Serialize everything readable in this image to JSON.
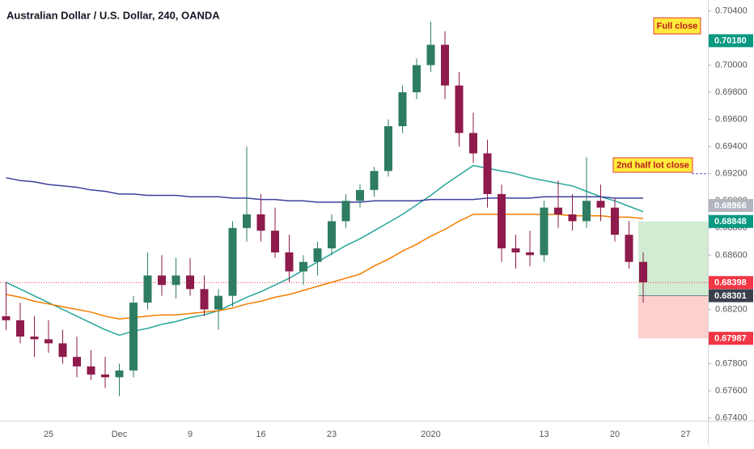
{
  "chart_data": {
    "type": "candlestick",
    "title": "Australian Dollar / U.S. Dollar, 240, OANDA",
    "categories": [
      null,
      null,
      null,
      "25",
      null,
      null,
      null,
      null,
      "Dec",
      null,
      null,
      null,
      null,
      "9",
      null,
      null,
      null,
      null,
      "16",
      null,
      null,
      null,
      null,
      "23",
      null,
      null,
      null,
      null,
      null,
      null,
      "2020",
      null,
      null,
      null,
      null,
      null,
      null,
      null,
      "13",
      null,
      null,
      null,
      null,
      "20",
      null,
      null,
      null,
      null,
      "27",
      null
    ],
    "open": [
      0.6815,
      0.6812,
      0.68,
      0.6798,
      0.6795,
      0.6785,
      0.6778,
      0.6772,
      0.677,
      0.6775,
      0.6825,
      0.6845,
      0.6838,
      0.6845,
      0.6835,
      0.682,
      0.683,
      0.688,
      0.689,
      0.6878,
      0.6862,
      0.6848,
      0.6855,
      0.6865,
      0.6885,
      0.69,
      0.6908,
      0.6922,
      0.6955,
      0.698,
      0.7,
      0.7015,
      0.6985,
      0.695,
      0.6935,
      0.6905,
      0.6865,
      0.6862,
      0.686,
      0.6895,
      0.689,
      0.6885,
      0.69,
      0.6895,
      0.6875,
      0.6855,
      null,
      null,
      null,
      null
    ],
    "high": [
      0.684,
      0.6825,
      0.6815,
      0.6812,
      0.6805,
      0.68,
      0.679,
      0.6785,
      0.678,
      0.683,
      0.6862,
      0.686,
      0.6858,
      0.6858,
      0.6845,
      0.6835,
      0.6885,
      0.694,
      0.6905,
      0.6895,
      0.6875,
      0.686,
      0.687,
      0.689,
      0.6905,
      0.6912,
      0.6925,
      0.696,
      0.6985,
      0.7005,
      0.7032,
      0.7025,
      0.6995,
      0.6965,
      0.6945,
      0.6912,
      0.6875,
      0.6878,
      0.69,
      0.6915,
      0.6905,
      0.6932,
      0.6912,
      0.6902,
      0.6885,
      0.6862,
      null,
      null,
      null,
      null
    ],
    "low": [
      0.6805,
      0.6795,
      0.6785,
      0.6788,
      0.678,
      0.677,
      0.6768,
      0.6762,
      0.6756,
      0.677,
      0.682,
      0.683,
      0.6828,
      0.683,
      0.6815,
      0.6805,
      0.6822,
      0.687,
      0.687,
      0.6858,
      0.684,
      0.6838,
      0.6845,
      0.686,
      0.688,
      0.6895,
      0.6903,
      0.6918,
      0.695,
      0.6975,
      0.6995,
      0.6975,
      0.694,
      0.6928,
      0.6895,
      0.6855,
      0.685,
      0.6852,
      0.6855,
      0.688,
      0.6878,
      0.688,
      0.6885,
      0.687,
      0.685,
      0.6825,
      null,
      null,
      null,
      null
    ],
    "close": [
      0.6812,
      0.68,
      0.6798,
      0.6795,
      0.6785,
      0.6778,
      0.6772,
      0.677,
      0.6775,
      0.6825,
      0.6845,
      0.6838,
      0.6845,
      0.6835,
      0.682,
      0.683,
      0.688,
      0.689,
      0.6878,
      0.6862,
      0.6848,
      0.6855,
      0.6865,
      0.6885,
      0.69,
      0.6908,
      0.6922,
      0.6955,
      0.698,
      0.7,
      0.7015,
      0.6985,
      0.695,
      0.6935,
      0.6905,
      0.6865,
      0.6862,
      0.686,
      0.6895,
      0.689,
      0.6885,
      0.69,
      0.6895,
      0.6875,
      0.6855,
      0.684,
      null,
      null,
      null,
      null
    ],
    "up_color": "#2e7d62",
    "down_color": "#8e1b4b",
    "moving_averages": [
      {
        "color": "#26a69a",
        "values": [
          0.684,
          0.6835,
          0.683,
          0.6825,
          0.682,
          0.6815,
          0.681,
          0.6805,
          0.6801,
          0.6804,
          0.6806,
          0.6809,
          0.6811,
          0.6814,
          0.6816,
          0.6819,
          0.6824,
          0.6829,
          0.6833,
          0.6838,
          0.6843,
          0.6849,
          0.6855,
          0.6861,
          0.6867,
          0.6872,
          0.6878,
          0.6884,
          0.689,
          0.6897,
          0.6904,
          0.6912,
          0.6919,
          0.6926,
          0.6924,
          0.6922,
          0.692,
          0.6917,
          0.6915,
          0.6913,
          0.6911,
          0.6907,
          0.6903,
          0.69,
          0.6896,
          0.6892,
          null,
          null,
          null,
          null
        ]
      },
      {
        "color": "#f57c00",
        "values": [
          0.6831,
          0.6829,
          0.6826,
          0.6824,
          0.6822,
          0.682,
          0.6818,
          0.6815,
          0.6813,
          0.6814,
          0.6815,
          0.6816,
          0.6816,
          0.6817,
          0.6818,
          0.6819,
          0.6821,
          0.6824,
          0.6826,
          0.6829,
          0.6831,
          0.6834,
          0.6837,
          0.684,
          0.6843,
          0.6846,
          0.6852,
          0.6857,
          0.6863,
          0.6868,
          0.6874,
          0.6879,
          0.6885,
          0.689,
          0.689,
          0.689,
          0.689,
          0.689,
          0.689,
          0.689,
          0.6889,
          0.6889,
          0.6889,
          0.6888,
          0.6888,
          0.6887,
          null,
          null,
          null,
          null
        ]
      },
      {
        "color": "#3f3fa0",
        "values": [
          0.6917,
          0.6915,
          0.6914,
          0.6912,
          0.6911,
          0.691,
          0.6908,
          0.6907,
          0.6905,
          0.6905,
          0.6904,
          0.6904,
          0.6904,
          0.6903,
          0.6903,
          0.6903,
          0.6902,
          0.6902,
          0.6901,
          0.6901,
          0.69,
          0.69,
          0.6899,
          0.6899,
          0.6899,
          0.6899,
          0.69,
          0.69,
          0.69,
          0.69,
          0.6901,
          0.6901,
          0.6901,
          0.6901,
          0.6902,
          0.6902,
          0.6902,
          0.6902,
          0.6903,
          0.6903,
          0.6903,
          0.6903,
          0.6903,
          0.6902,
          0.6902,
          0.6902,
          null,
          null,
          null,
          null
        ]
      }
    ],
    "ylim": [
      0.6738,
      0.7048
    ],
    "yticks": [
      {
        "value": 0.674,
        "label": "0.67400"
      },
      {
        "value": 0.676,
        "label": "0.67600"
      },
      {
        "value": 0.678,
        "label": "0.67800"
      },
      {
        "value": 0.68,
        "label": "0.68000"
      },
      {
        "value": 0.682,
        "label": "0.68200"
      },
      {
        "value": 0.684,
        "label": "0.68400"
      },
      {
        "value": 0.686,
        "label": "0.68600"
      },
      {
        "value": 0.688,
        "label": "0.68800"
      },
      {
        "value": 0.69,
        "label": "0.69000"
      },
      {
        "value": 0.692,
        "label": "0.69200"
      },
      {
        "value": 0.694,
        "label": "0.69400"
      },
      {
        "value": 0.696,
        "label": "0.69600"
      },
      {
        "value": 0.698,
        "label": "0.69800"
      },
      {
        "value": 0.7,
        "label": "0.70000"
      },
      {
        "value": 0.702,
        "label": "0.70200"
      },
      {
        "value": 0.704,
        "label": "0.70400"
      }
    ],
    "grid": false,
    "price_labels": [
      {
        "value": 0.7018,
        "label": "0.70180",
        "color": "#089981"
      },
      {
        "value": 0.68966,
        "label": "0.68966",
        "color": "#b2b5be"
      },
      {
        "value": 0.68848,
        "label": "0.68848",
        "color": "#089981"
      },
      {
        "value": 0.68398,
        "label": "0.68398",
        "color": "#f23645"
      },
      {
        "value": 0.68301,
        "label": "0.68301",
        "color": "#3a3f4b"
      },
      {
        "value": 0.67987,
        "label": "0.67987",
        "color": "#f23645"
      }
    ],
    "hlines": [
      {
        "value": 0.692,
        "color": "#5b5bd6"
      }
    ],
    "annotations": [
      "Full close",
      "2nd half lot close"
    ]
  }
}
